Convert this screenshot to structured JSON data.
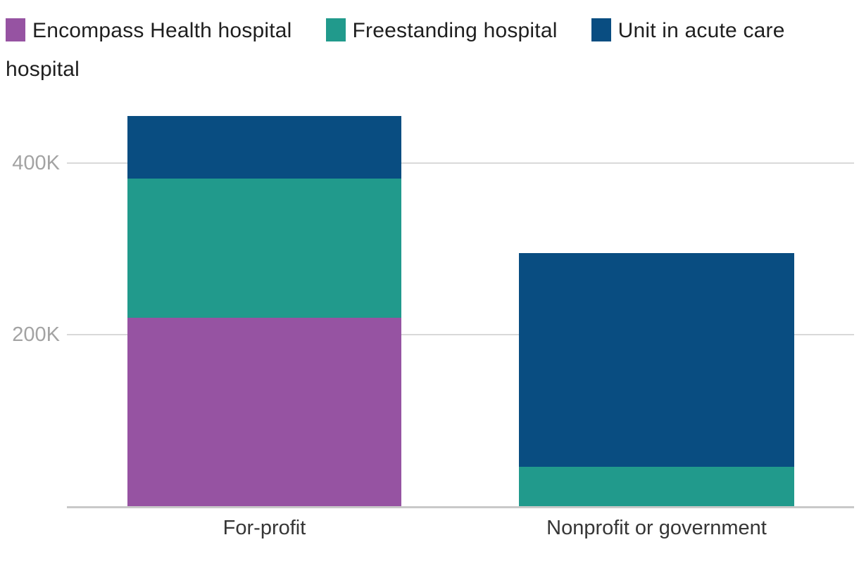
{
  "chart_data": {
    "type": "bar",
    "stacked": true,
    "title": "",
    "categories": [
      "For-profit",
      "Nonprofit or government"
    ],
    "series": [
      {
        "name": "Encompass Health hospital",
        "color": "#9653a2",
        "values": [
          220000,
          0
        ]
      },
      {
        "name": "Freestanding hospital",
        "color": "#219a8c",
        "values": [
          162000,
          46000
        ]
      },
      {
        "name": "Unit in acute care hospital",
        "color": "#094d81",
        "values": [
          73000,
          249000
        ]
      }
    ],
    "totals": [
      455000,
      295000
    ],
    "yticks": [
      {
        "value": 200000,
        "label": "200K"
      },
      {
        "value": 400000,
        "label": "400K"
      }
    ],
    "ylim": [
      0,
      467000
    ],
    "grid": true,
    "legend_position": "top",
    "xlabel": "",
    "ylabel": ""
  },
  "style_colors": {
    "gridline": "#d9d9d9",
    "baseline": "#c9c9c9",
    "tick_label": "#a3a3a3",
    "legend_text": "#1f1f1f",
    "category_label": "#363636",
    "background": "#ffffff"
  }
}
